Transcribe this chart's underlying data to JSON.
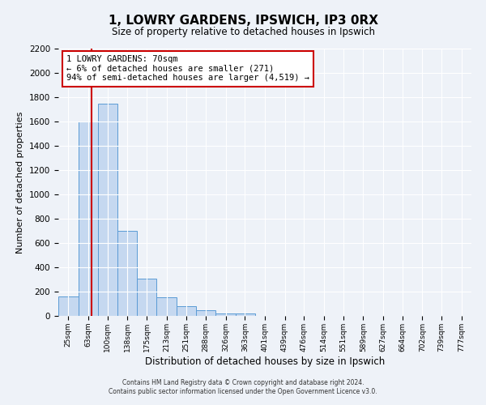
{
  "title": "1, LOWRY GARDENS, IPSWICH, IP3 0RX",
  "subtitle": "Size of property relative to detached houses in Ipswich",
  "xlabel": "Distribution of detached houses by size in Ipswich",
  "ylabel": "Number of detached properties",
  "bar_values": [
    160,
    1600,
    1750,
    700,
    310,
    155,
    80,
    45,
    20,
    20,
    0,
    0,
    0,
    0,
    0,
    0,
    0,
    0,
    0
  ],
  "bin_labels": [
    "25sqm",
    "63sqm",
    "100sqm",
    "138sqm",
    "175sqm",
    "213sqm",
    "251sqm",
    "288sqm",
    "326sqm",
    "363sqm",
    "401sqm",
    "439sqm",
    "476sqm",
    "514sqm",
    "551sqm",
    "589sqm",
    "627sqm",
    "664sqm",
    "702sqm",
    "739sqm",
    "777sqm"
  ],
  "label_centers": [
    25,
    63,
    100,
    138,
    175,
    213,
    251,
    288,
    326,
    363,
    401,
    439,
    476,
    514,
    551,
    589,
    627,
    664,
    702,
    739,
    777
  ],
  "ylim": [
    0,
    2200
  ],
  "yticks": [
    0,
    200,
    400,
    600,
    800,
    1000,
    1200,
    1400,
    1600,
    1800,
    2000,
    2200
  ],
  "bar_color": "#c5d8f0",
  "bar_edge_color": "#5b9bd5",
  "vline_x": 70,
  "vline_color": "#cc0000",
  "annotation_title": "1 LOWRY GARDENS: 70sqm",
  "annotation_line1": "← 6% of detached houses are smaller (271)",
  "annotation_line2": "94% of semi-detached houses are larger (4,519) →",
  "annotation_box_edge": "#cc0000",
  "footer_line1": "Contains HM Land Registry data © Crown copyright and database right 2024.",
  "footer_line2": "Contains public sector information licensed under the Open Government Licence v3.0.",
  "background_color": "#eef2f8",
  "grid_color": "#ffffff"
}
